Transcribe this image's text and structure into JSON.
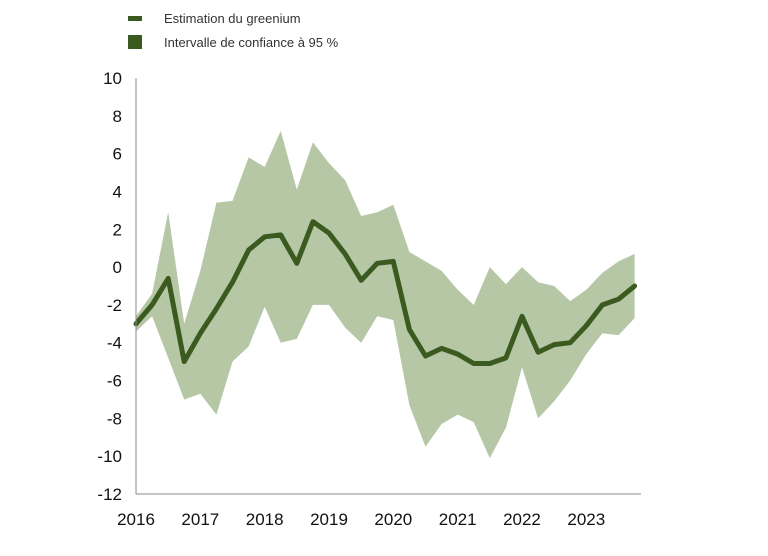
{
  "colors": {
    "line": "#3b5a1f",
    "band": "#a9bd97",
    "axis": "#888888"
  },
  "legend": {
    "items": [
      {
        "label": "Estimation du greenium",
        "symbol": "line"
      },
      {
        "label": "Intervalle de confiance à 95 %",
        "symbol": "box"
      }
    ]
  },
  "chart_data": {
    "type": "line",
    "title": "",
    "xlabel": "",
    "ylabel": "",
    "xlim": [
      2016,
      2023.85
    ],
    "ylim": [
      -12,
      10
    ],
    "grid": false,
    "legend_position": "top-left",
    "x_ticks": [
      2016,
      2017,
      2018,
      2019,
      2020,
      2021,
      2022,
      2023
    ],
    "y_ticks": [
      10,
      8,
      6,
      4,
      2,
      0,
      -2,
      -4,
      -6,
      -8,
      -10,
      -12
    ],
    "x": [
      2016.0,
      2016.25,
      2016.5,
      2016.75,
      2017.0,
      2017.25,
      2017.5,
      2017.75,
      2018.0,
      2018.25,
      2018.5,
      2018.75,
      2019.0,
      2019.25,
      2019.5,
      2019.75,
      2020.0,
      2020.25,
      2020.5,
      2020.75,
      2021.0,
      2021.25,
      2021.5,
      2021.75,
      2022.0,
      2022.25,
      2022.5,
      2022.75,
      2023.0,
      2023.25,
      2023.5,
      2023.75
    ],
    "series": [
      {
        "name": "Estimation du greenium",
        "values": [
          -3.0,
          -2.0,
          -0.6,
          -5.0,
          -3.5,
          -2.2,
          -0.8,
          0.9,
          1.6,
          1.7,
          0.2,
          2.4,
          1.8,
          0.7,
          -0.7,
          0.2,
          0.3,
          -3.3,
          -4.7,
          -4.3,
          -4.6,
          -5.1,
          -5.1,
          -4.8,
          -2.6,
          -4.5,
          -4.1,
          -4.0,
          -3.1,
          -2.0,
          -1.7,
          -1.0
        ]
      }
    ],
    "confidence_band": {
      "name": "Intervalle de confiance à 95 %",
      "lower": [
        -3.4,
        -2.6,
        -4.8,
        -7.0,
        -6.7,
        -7.8,
        -5.0,
        -4.2,
        -2.1,
        -4.0,
        -3.8,
        -2.0,
        -2.0,
        -3.2,
        -4.0,
        -2.6,
        -2.8,
        -7.3,
        -9.5,
        -8.3,
        -7.8,
        -8.2,
        -10.1,
        -8.5,
        -5.3,
        -8.0,
        -7.1,
        -6.0,
        -4.6,
        -3.5,
        -3.6,
        -2.7
      ],
      "upper": [
        -2.6,
        -1.4,
        2.9,
        -3.0,
        -0.2,
        3.4,
        3.5,
        5.8,
        5.3,
        7.2,
        4.1,
        6.6,
        5.5,
        4.6,
        2.7,
        2.9,
        3.3,
        0.8,
        0.3,
        -0.2,
        -1.2,
        -2.0,
        0.0,
        -0.9,
        0.0,
        -0.8,
        -1.0,
        -1.8,
        -1.2,
        -0.3,
        0.3,
        0.7
      ]
    }
  }
}
